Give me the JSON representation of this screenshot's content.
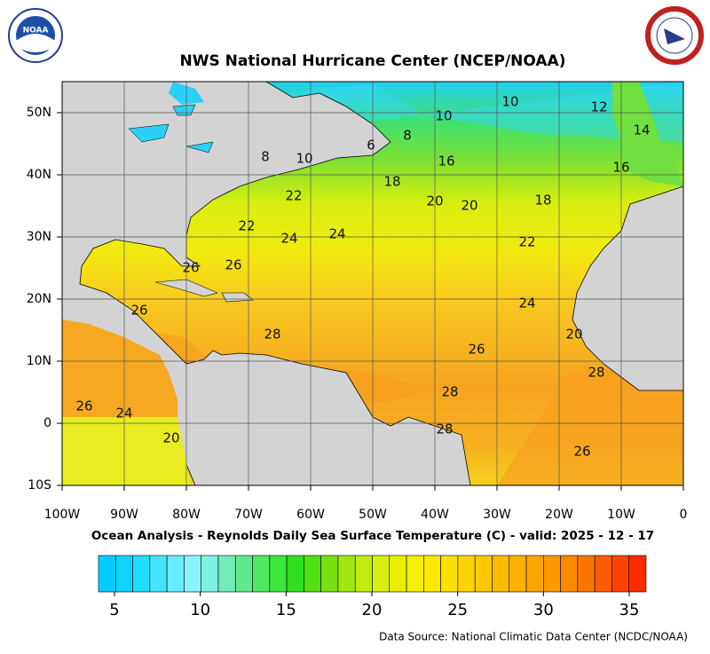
{
  "header": {
    "title": "NWS National Hurricane Center (NCEP/NOAA)",
    "left_logo": "NOAA"
  },
  "map": {
    "lon_ticks": [
      {
        "value": -100,
        "label": "100W"
      },
      {
        "value": -90,
        "label": "90W"
      },
      {
        "value": -80,
        "label": "80W"
      },
      {
        "value": -70,
        "label": "70W"
      },
      {
        "value": -60,
        "label": "60W"
      },
      {
        "value": -50,
        "label": "50W"
      },
      {
        "value": -40,
        "label": "40W"
      },
      {
        "value": -30,
        "label": "30W"
      },
      {
        "value": -20,
        "label": "20W"
      },
      {
        "value": -10,
        "label": "10W"
      },
      0
    ],
    "lat_ticks": [
      {
        "value": 50,
        "label": "50N"
      },
      {
        "value": 40,
        "label": "40N"
      },
      {
        "value": 30,
        "label": "30N"
      },
      {
        "value": 20,
        "label": "20N"
      },
      {
        "value": 10,
        "label": "10N"
      },
      0,
      {
        "value": -10,
        "label": "10S"
      }
    ],
    "contour_labels": [
      10,
      10,
      12,
      14,
      16,
      6,
      8,
      8,
      10,
      16,
      18,
      20,
      20,
      18,
      22,
      22,
      24,
      24,
      22,
      26,
      26,
      26,
      24,
      28,
      26,
      20,
      28,
      28,
      28,
      26,
      24,
      20,
      26
    ]
  },
  "subtitle": "Ocean Analysis - Reynolds Daily Sea Surface Temperature (C) - valid: 2025 - 12 - 17",
  "colorbar": {
    "ticks": [
      5,
      10,
      15,
      20,
      25,
      30,
      35
    ]
  },
  "footer": {
    "source": "Data Source: National Climatic Data Center (NCDC/NOAA)"
  }
}
